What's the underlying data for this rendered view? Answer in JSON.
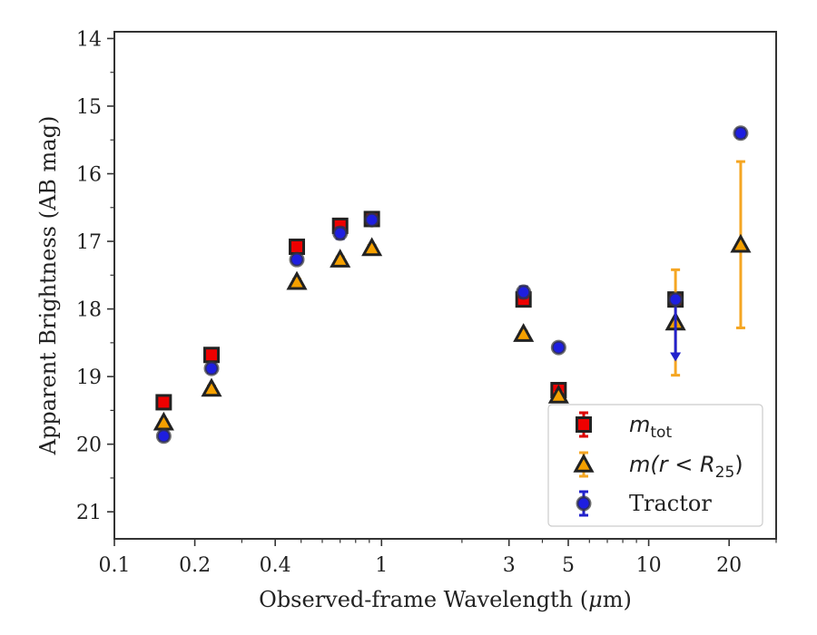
{
  "chart_data": {
    "type": "scatter",
    "title": "",
    "xlabel": "Observed-frame Wavelength (",
    "xlabel_mu": "μ",
    "xlabel_unit": "m)",
    "ylabel": "Apparent Brightness (AB mag)",
    "x_scale": "log",
    "y_inverted": true,
    "xlim": [
      0.1,
      30
    ],
    "ylim": [
      21.4,
      13.9
    ],
    "x_ticks": [
      {
        "value": 0.1,
        "label": "0.1"
      },
      {
        "value": 0.2,
        "label": "0.2"
      },
      {
        "value": 0.4,
        "label": "0.4"
      },
      {
        "value": 1,
        "label": "1"
      },
      {
        "value": 3,
        "label": "3"
      },
      {
        "value": 5,
        "label": "5"
      },
      {
        "value": 10,
        "label": "10"
      },
      {
        "value": 20,
        "label": "20"
      }
    ],
    "y_ticks": [
      {
        "value": 14,
        "label": "14"
      },
      {
        "value": 15,
        "label": "15"
      },
      {
        "value": 16,
        "label": "16"
      },
      {
        "value": 17,
        "label": "17"
      },
      {
        "value": 18,
        "label": "18"
      },
      {
        "value": 19,
        "label": "19"
      },
      {
        "value": 20,
        "label": "20"
      },
      {
        "value": 21,
        "label": "21"
      }
    ],
    "grid": false,
    "legend_position": "bottom-right",
    "series": [
      {
        "name": "m_tot",
        "legend_main": "m",
        "legend_sub": "tot",
        "marker": "square",
        "color": "#ee0000",
        "errcolor": "#dd0000",
        "points": [
          {
            "x": 0.153,
            "y": 19.38,
            "err": 0.04
          },
          {
            "x": 0.231,
            "y": 18.68,
            "err": 0.04
          },
          {
            "x": 0.482,
            "y": 17.08,
            "err": 0.04
          },
          {
            "x": 0.7,
            "y": 16.77,
            "err": 0.1
          },
          {
            "x": 0.92,
            "y": 16.67,
            "err": 0.04
          },
          {
            "x": 3.4,
            "y": 17.86,
            "err": 0.08
          },
          {
            "x": 4.6,
            "y": 19.2,
            "err": 0.06
          },
          {
            "x": 12.6,
            "y": 17.86,
            "err": 0.05
          }
        ]
      },
      {
        "name": "m(r<R25)",
        "legend_main": "m(r < R",
        "legend_sub": "25",
        "legend_close": ")",
        "marker": "triangle",
        "color": "#f5a000",
        "errcolor": "#f5a623",
        "points": [
          {
            "x": 0.153,
            "y": 19.68,
            "err": 0.04
          },
          {
            "x": 0.231,
            "y": 19.18,
            "err": 0.04
          },
          {
            "x": 0.482,
            "y": 17.6,
            "err": 0.04
          },
          {
            "x": 0.7,
            "y": 17.27,
            "err": 0.04
          },
          {
            "x": 0.92,
            "y": 17.1,
            "err": 0.04
          },
          {
            "x": 3.4,
            "y": 18.37,
            "err": 0.04
          },
          {
            "x": 4.6,
            "y": 19.28,
            "err": 0.04
          },
          {
            "x": 12.6,
            "y": 18.2,
            "err_low": 0.78,
            "err_high": 0.78
          },
          {
            "x": 22.1,
            "y": 17.05,
            "err_low": 1.23,
            "err_high": 1.23
          }
        ]
      },
      {
        "name": "Tractor",
        "legend_main": "Tractor",
        "marker": "circle",
        "color": "#1e1ee0",
        "errcolor": "#2222cc",
        "points": [
          {
            "x": 0.153,
            "y": 19.88,
            "err": 0.06
          },
          {
            "x": 0.231,
            "y": 18.88,
            "err": 0.06
          },
          {
            "x": 0.482,
            "y": 17.27,
            "err": 0.04
          },
          {
            "x": 0.7,
            "y": 16.88,
            "err": 0.08
          },
          {
            "x": 0.92,
            "y": 16.68,
            "err": 0.03
          },
          {
            "x": 3.4,
            "y": 17.75,
            "err": 0.08
          },
          {
            "x": 4.6,
            "y": 18.57,
            "err": 0.05
          },
          {
            "x": 12.6,
            "y": 17.86,
            "upper_limit": true,
            "arrow_to": 18.75
          },
          {
            "x": 22.1,
            "y": 15.4,
            "err": 0.06
          }
        ]
      }
    ]
  }
}
